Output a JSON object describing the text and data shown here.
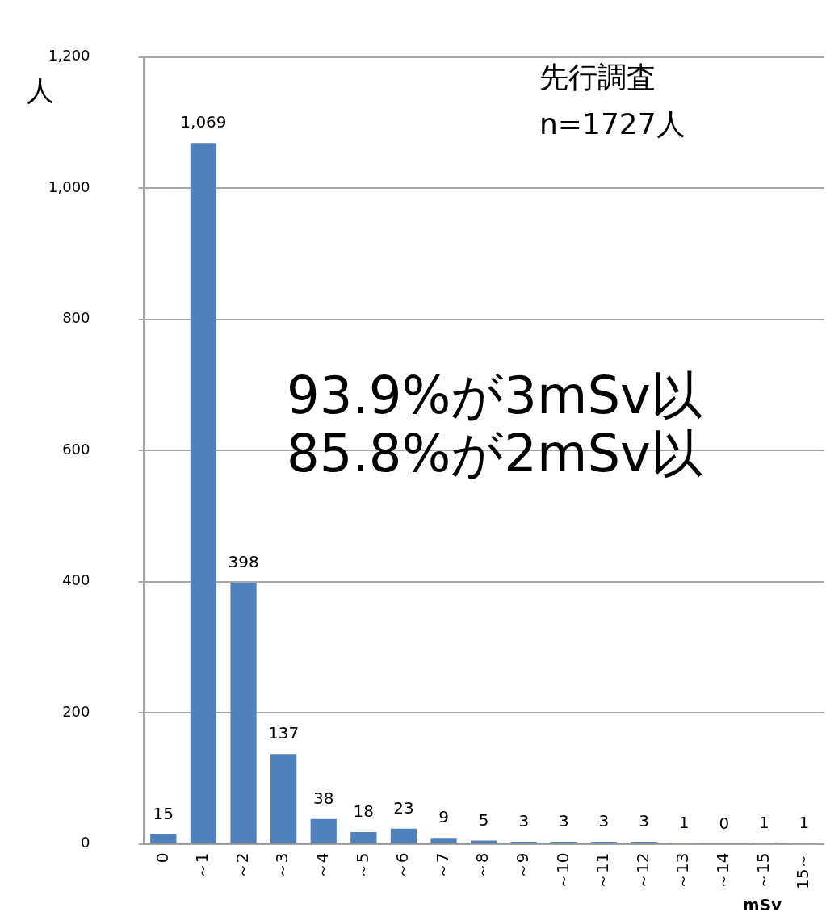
{
  "chart_data": {
    "type": "bar",
    "ylabel": "人",
    "xlabel": "mSv",
    "categories": [
      "0",
      "～1",
      "～2",
      "～3",
      "～4",
      "～5",
      "～6",
      "～7",
      "～8",
      "～9",
      "～10",
      "～11",
      "～12",
      "～13",
      "～14",
      "～15",
      "15～"
    ],
    "values": [
      15,
      1069,
      398,
      137,
      38,
      18,
      23,
      9,
      5,
      3,
      3,
      3,
      3,
      1,
      0,
      1,
      1
    ],
    "color": "#4f81bd",
    "value_labels": [
      "15",
      "1,069",
      "398",
      "137",
      "38",
      "18",
      "23",
      "9",
      "5",
      "3",
      "3",
      "3",
      "3",
      "1",
      "0",
      "1",
      "1"
    ],
    "ylim": [
      0,
      1200
    ],
    "yticks": [
      {
        "value": 0,
        "label": "0"
      },
      {
        "value": 200,
        "label": "200"
      },
      {
        "value": 400,
        "label": "400"
      },
      {
        "value": 600,
        "label": "600"
      },
      {
        "value": 800,
        "label": "800"
      },
      {
        "value": 1000,
        "label": "1,000"
      },
      {
        "value": 1200,
        "label": "1,200"
      }
    ],
    "grid": "y",
    "annotations": [
      "先行調査",
      "n=1727人",
      "93.9%が3mSv以",
      "85.8%が2mSv以"
    ]
  }
}
